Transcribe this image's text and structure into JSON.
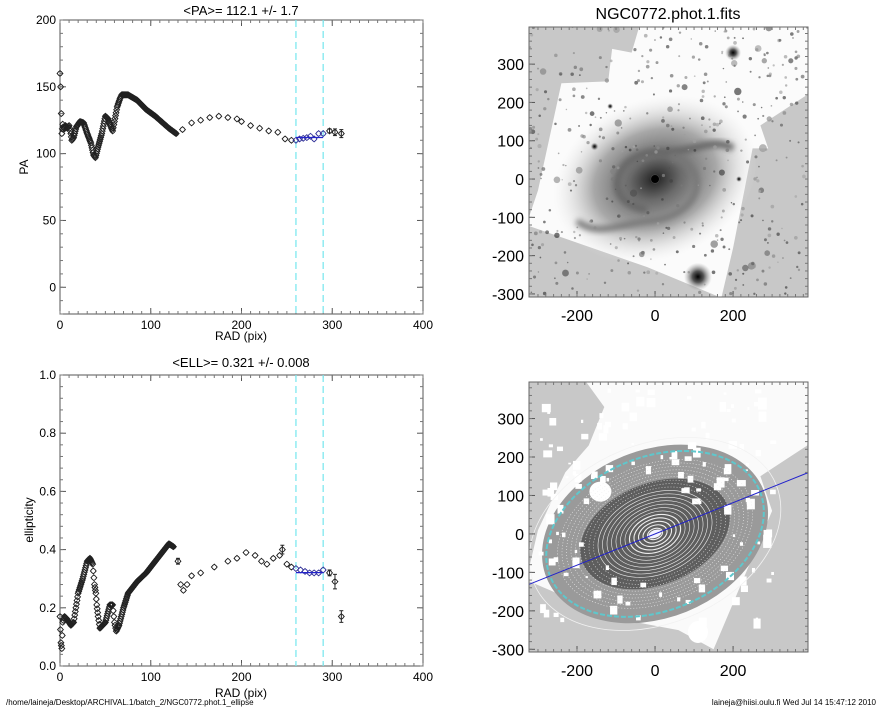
{
  "footer": {
    "path": "/home/laineja/Desktop/ARCHIVAL.1/batch_2/NGC0772.phot.1_ellipse",
    "stamp": "laineja@hiisi.oulu.fi  Wed Jul 14 15:47:12 2010"
  },
  "colors": {
    "points": "#000000",
    "fit_line": "#2222cc",
    "range_lines": "#7fe8ef",
    "image_bg": "#c8c8c8"
  },
  "chart_data": [
    {
      "type": "scatter",
      "title": "<PA>= 112.1 +/-   1.7",
      "xlabel": "RAD (pix)",
      "ylabel": "PA",
      "xlim": [
        0,
        400
      ],
      "ylim": [
        -20,
        200
      ],
      "xticks": [
        "0",
        "100",
        "200",
        "300",
        "400"
      ],
      "yticks": [
        "0",
        "50",
        "100",
        "150",
        "200"
      ],
      "fit_range": [
        260,
        290
      ],
      "fit_value": 112.1,
      "points": [
        [
          0,
          160
        ],
        [
          0.7,
          150
        ],
        [
          1.4,
          130
        ],
        [
          2,
          115
        ],
        [
          3,
          122
        ],
        [
          4,
          118
        ],
        [
          6,
          121
        ],
        [
          8,
          119
        ],
        [
          10,
          121
        ],
        [
          12,
          115
        ],
        [
          13,
          110
        ],
        [
          15,
          112
        ],
        [
          18,
          120
        ],
        [
          22,
          124
        ],
        [
          26,
          123
        ],
        [
          30,
          115
        ],
        [
          34,
          108
        ],
        [
          37,
          99
        ],
        [
          39,
          97
        ],
        [
          42,
          105
        ],
        [
          46,
          115
        ],
        [
          50,
          128
        ],
        [
          53,
          126
        ],
        [
          55,
          122
        ],
        [
          58,
          117
        ],
        [
          60,
          124
        ],
        [
          63,
          135
        ],
        [
          66,
          141
        ],
        [
          68,
          144
        ],
        [
          75,
          144
        ],
        [
          80,
          142
        ],
        [
          85,
          140
        ],
        [
          95,
          133
        ],
        [
          105,
          128
        ],
        [
          110,
          125
        ],
        [
          120,
          119
        ],
        [
          128,
          115
        ],
        [
          135,
          118
        ],
        [
          145,
          123
        ],
        [
          155,
          125
        ],
        [
          165,
          127
        ],
        [
          175,
          128
        ],
        [
          185,
          127
        ],
        [
          195,
          126
        ],
        [
          200,
          124
        ],
        [
          210,
          121
        ],
        [
          220,
          119
        ],
        [
          230,
          117
        ],
        [
          240,
          116
        ],
        [
          248,
          111
        ],
        [
          255,
          110
        ],
        [
          260,
          110
        ],
        [
          264,
          111
        ],
        [
          268,
          111.5
        ],
        [
          272,
          112
        ],
        [
          276,
          113
        ],
        [
          280,
          111
        ],
        [
          285,
          115
        ],
        [
          290,
          115
        ],
        [
          297,
          117
        ],
        [
          303,
          116
        ],
        [
          310,
          115
        ]
      ],
      "errors": {
        "297": 1.5,
        "303": 2.5,
        "310": 3
      }
    },
    {
      "type": "scatter",
      "title": "<ELL>= 0.321 +/-  0.008",
      "xlabel": "RAD (pix)",
      "ylabel": "ellipticity",
      "xlim": [
        0,
        400
      ],
      "ylim": [
        0,
        1
      ],
      "xticks": [
        "0",
        "100",
        "200",
        "300",
        "400"
      ],
      "yticks": [
        "0.0",
        "0.2",
        "0.4",
        "0.6",
        "0.8",
        "1.0"
      ],
      "fit_range": [
        260,
        290
      ],
      "fit_value": 0.321,
      "points": [
        [
          0,
          0.17
        ],
        [
          1,
          0.08
        ],
        [
          2,
          0.06
        ],
        [
          3,
          0.15
        ],
        [
          5,
          0.17
        ],
        [
          8,
          0.16
        ],
        [
          12,
          0.14
        ],
        [
          15,
          0.15
        ],
        [
          20,
          0.25
        ],
        [
          25,
          0.3
        ],
        [
          30,
          0.36
        ],
        [
          33,
          0.37
        ],
        [
          36,
          0.35
        ],
        [
          38,
          0.28
        ],
        [
          39.5,
          0.25
        ],
        [
          40.5,
          0.21
        ],
        [
          42,
          0.17
        ],
        [
          44,
          0.13
        ],
        [
          50,
          0.15
        ],
        [
          55,
          0.21
        ],
        [
          58,
          0.21
        ],
        [
          60,
          0.15
        ],
        [
          62,
          0.12
        ],
        [
          65,
          0.14
        ],
        [
          70,
          0.2
        ],
        [
          75,
          0.25
        ],
        [
          85,
          0.29
        ],
        [
          95,
          0.32
        ],
        [
          105,
          0.36
        ],
        [
          115,
          0.4
        ],
        [
          120,
          0.42
        ],
        [
          125,
          0.41
        ],
        [
          130,
          0.36
        ],
        [
          133,
          0.28
        ],
        [
          136,
          0.26
        ],
        [
          140,
          0.28
        ],
        [
          145,
          0.31
        ],
        [
          155,
          0.32
        ],
        [
          170,
          0.34
        ],
        [
          185,
          0.36
        ],
        [
          195,
          0.37
        ],
        [
          205,
          0.39
        ],
        [
          215,
          0.38
        ],
        [
          222,
          0.36
        ],
        [
          228,
          0.35
        ],
        [
          235,
          0.37
        ],
        [
          242,
          0.38
        ],
        [
          245,
          0.4
        ],
        [
          250,
          0.35
        ],
        [
          255,
          0.34
        ],
        [
          260,
          0.335
        ],
        [
          265,
          0.33
        ],
        [
          270,
          0.325
        ],
        [
          275,
          0.32
        ],
        [
          280,
          0.32
        ],
        [
          285,
          0.32
        ],
        [
          290,
          0.33
        ],
        [
          297,
          0.32
        ],
        [
          303,
          0.29
        ],
        [
          310,
          0.17
        ]
      ],
      "errors": {
        "130": 0.01,
        "245": 0.015,
        "297": 0.01,
        "303": 0.025,
        "310": 0.02
      }
    },
    {
      "type": "heatmap",
      "title": "NGC0772.phot.1.fits",
      "xlim": [
        -323,
        392
      ],
      "ylim": [
        -308,
        397
      ],
      "xticks": [
        "-200",
        "0",
        "200"
      ],
      "yticks": [
        "300",
        "200",
        "100",
        "0",
        "-100",
        "-200",
        "-300"
      ]
    },
    {
      "type": "heatmap",
      "title": "",
      "xlim": [
        -323,
        392
      ],
      "ylim": [
        -307,
        395
      ],
      "xticks": [
        "-200",
        "0",
        "200"
      ],
      "yticks": [
        "300",
        "200",
        "100",
        "0",
        "-100",
        "-200",
        "-300"
      ],
      "position_angle": 112.1,
      "ellipticity": 0.321
    }
  ]
}
